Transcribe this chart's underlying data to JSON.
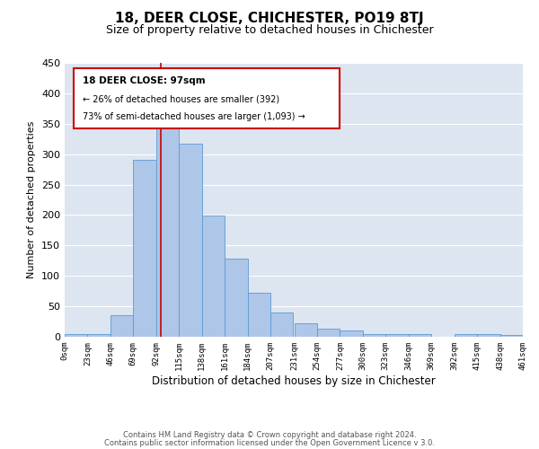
{
  "title": "18, DEER CLOSE, CHICHESTER, PO19 8TJ",
  "subtitle": "Size of property relative to detached houses in Chichester",
  "xlabel": "Distribution of detached houses by size in Chichester",
  "ylabel": "Number of detached properties",
  "bar_values": [
    5,
    5,
    36,
    290,
    358,
    317,
    199,
    129,
    72,
    40,
    22,
    13,
    11,
    5,
    4,
    4,
    0,
    5,
    5,
    3
  ],
  "bin_edges": [
    0,
    23,
    46,
    69,
    92,
    115,
    138,
    161,
    184,
    207,
    231,
    254,
    277,
    300,
    323,
    346,
    369,
    392,
    415,
    438,
    461
  ],
  "tick_labels": [
    "0sqm",
    "23sqm",
    "46sqm",
    "69sqm",
    "92sqm",
    "115sqm",
    "138sqm",
    "161sqm",
    "184sqm",
    "207sqm",
    "231sqm",
    "254sqm",
    "277sqm",
    "300sqm",
    "323sqm",
    "346sqm",
    "369sqm",
    "392sqm",
    "415sqm",
    "438sqm",
    "461sqm"
  ],
  "bar_color": "#aec6e8",
  "bar_edge_color": "#5b9bd5",
  "property_line_x": 97,
  "property_line_color": "#cc0000",
  "ylim": [
    0,
    450
  ],
  "yticks": [
    0,
    50,
    100,
    150,
    200,
    250,
    300,
    350,
    400,
    450
  ],
  "annotation_title": "18 DEER CLOSE: 97sqm",
  "annotation_line1": "← 26% of detached houses are smaller (392)",
  "annotation_line2": "73% of semi-detached houses are larger (1,093) →",
  "annotation_box_color": "#cc0000",
  "footer_line1": "Contains HM Land Registry data © Crown copyright and database right 2024.",
  "footer_line2": "Contains public sector information licensed under the Open Government Licence v 3.0.",
  "bg_color": "#dde5f0",
  "grid_color": "#ffffff",
  "title_fontsize": 11,
  "subtitle_fontsize": 9,
  "xlabel_fontsize": 8.5,
  "ylabel_fontsize": 8,
  "tick_fontsize": 6.5,
  "footer_fontsize": 6,
  "annot_fontsize_title": 7.5,
  "annot_fontsize_body": 7
}
